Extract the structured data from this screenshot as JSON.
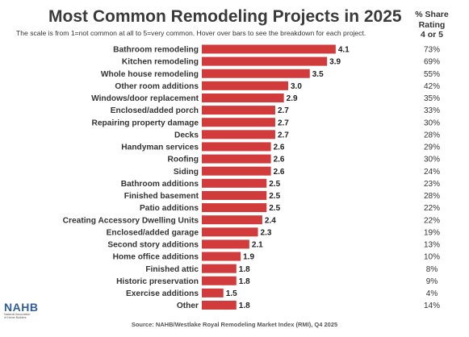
{
  "chart_data": {
    "type": "bar",
    "orientation": "horizontal",
    "title": "Most Common Remodeling Projects in 2025",
    "subtitle": "The scale is from 1=not common at all to 5=very common. Hover over bars to see the breakdown for each project.",
    "categories": [
      "Bathroom remodeling",
      "Kitchen remodeling",
      "Whole house remodeling",
      "Other room additions",
      "Windows/door replacement",
      "Enclosed/added porch",
      "Repairing property damage",
      "Decks",
      "Handyman services",
      "Roofing",
      "Siding",
      "Bathroom additions",
      "Finished basement",
      "Patio additions",
      "Creating Accessory Dwelling Units",
      "Enclosed/added garage",
      "Second story additions",
      "Home office additions",
      "Finished attic",
      "Historic preservation",
      "Exercise additions",
      "Other"
    ],
    "values": [
      4.1,
      3.9,
      3.5,
      3.0,
      2.9,
      2.7,
      2.7,
      2.7,
      2.6,
      2.6,
      2.6,
      2.5,
      2.5,
      2.5,
      2.4,
      2.3,
      2.1,
      1.9,
      1.8,
      1.8,
      1.5,
      1.8
    ],
    "value_labels": [
      "4.1",
      "3.9",
      "3.5",
      "3.0",
      "2.9",
      "2.7",
      "2.7",
      "2.7",
      "2.6",
      "2.6",
      "2.6",
      "2.5",
      "2.5",
      "2.5",
      "2.4",
      "2.3",
      "2.1",
      "1.9",
      "1.8",
      "1.8",
      "1.5",
      "1.8"
    ],
    "share_header": [
      "% Share",
      "Rating",
      "4 or 5"
    ],
    "share_values": [
      "73%",
      "69%",
      "55%",
      "42%",
      "35%",
      "33%",
      "30%",
      "28%",
      "29%",
      "30%",
      "24%",
      "23%",
      "28%",
      "22%",
      "22%",
      "19%",
      "13%",
      "10%",
      "8%",
      "9%",
      "4%",
      "14%"
    ],
    "xlim": [
      1,
      5
    ],
    "grid": false,
    "bar_color": "#d13b3b"
  },
  "logo": {
    "mark": "NAHB",
    "lines": [
      "National Association",
      "of Home Builders"
    ]
  },
  "source": "Source: NAHB/Westlake Royal Remodeling Market Index (RMI), Q4 2025"
}
